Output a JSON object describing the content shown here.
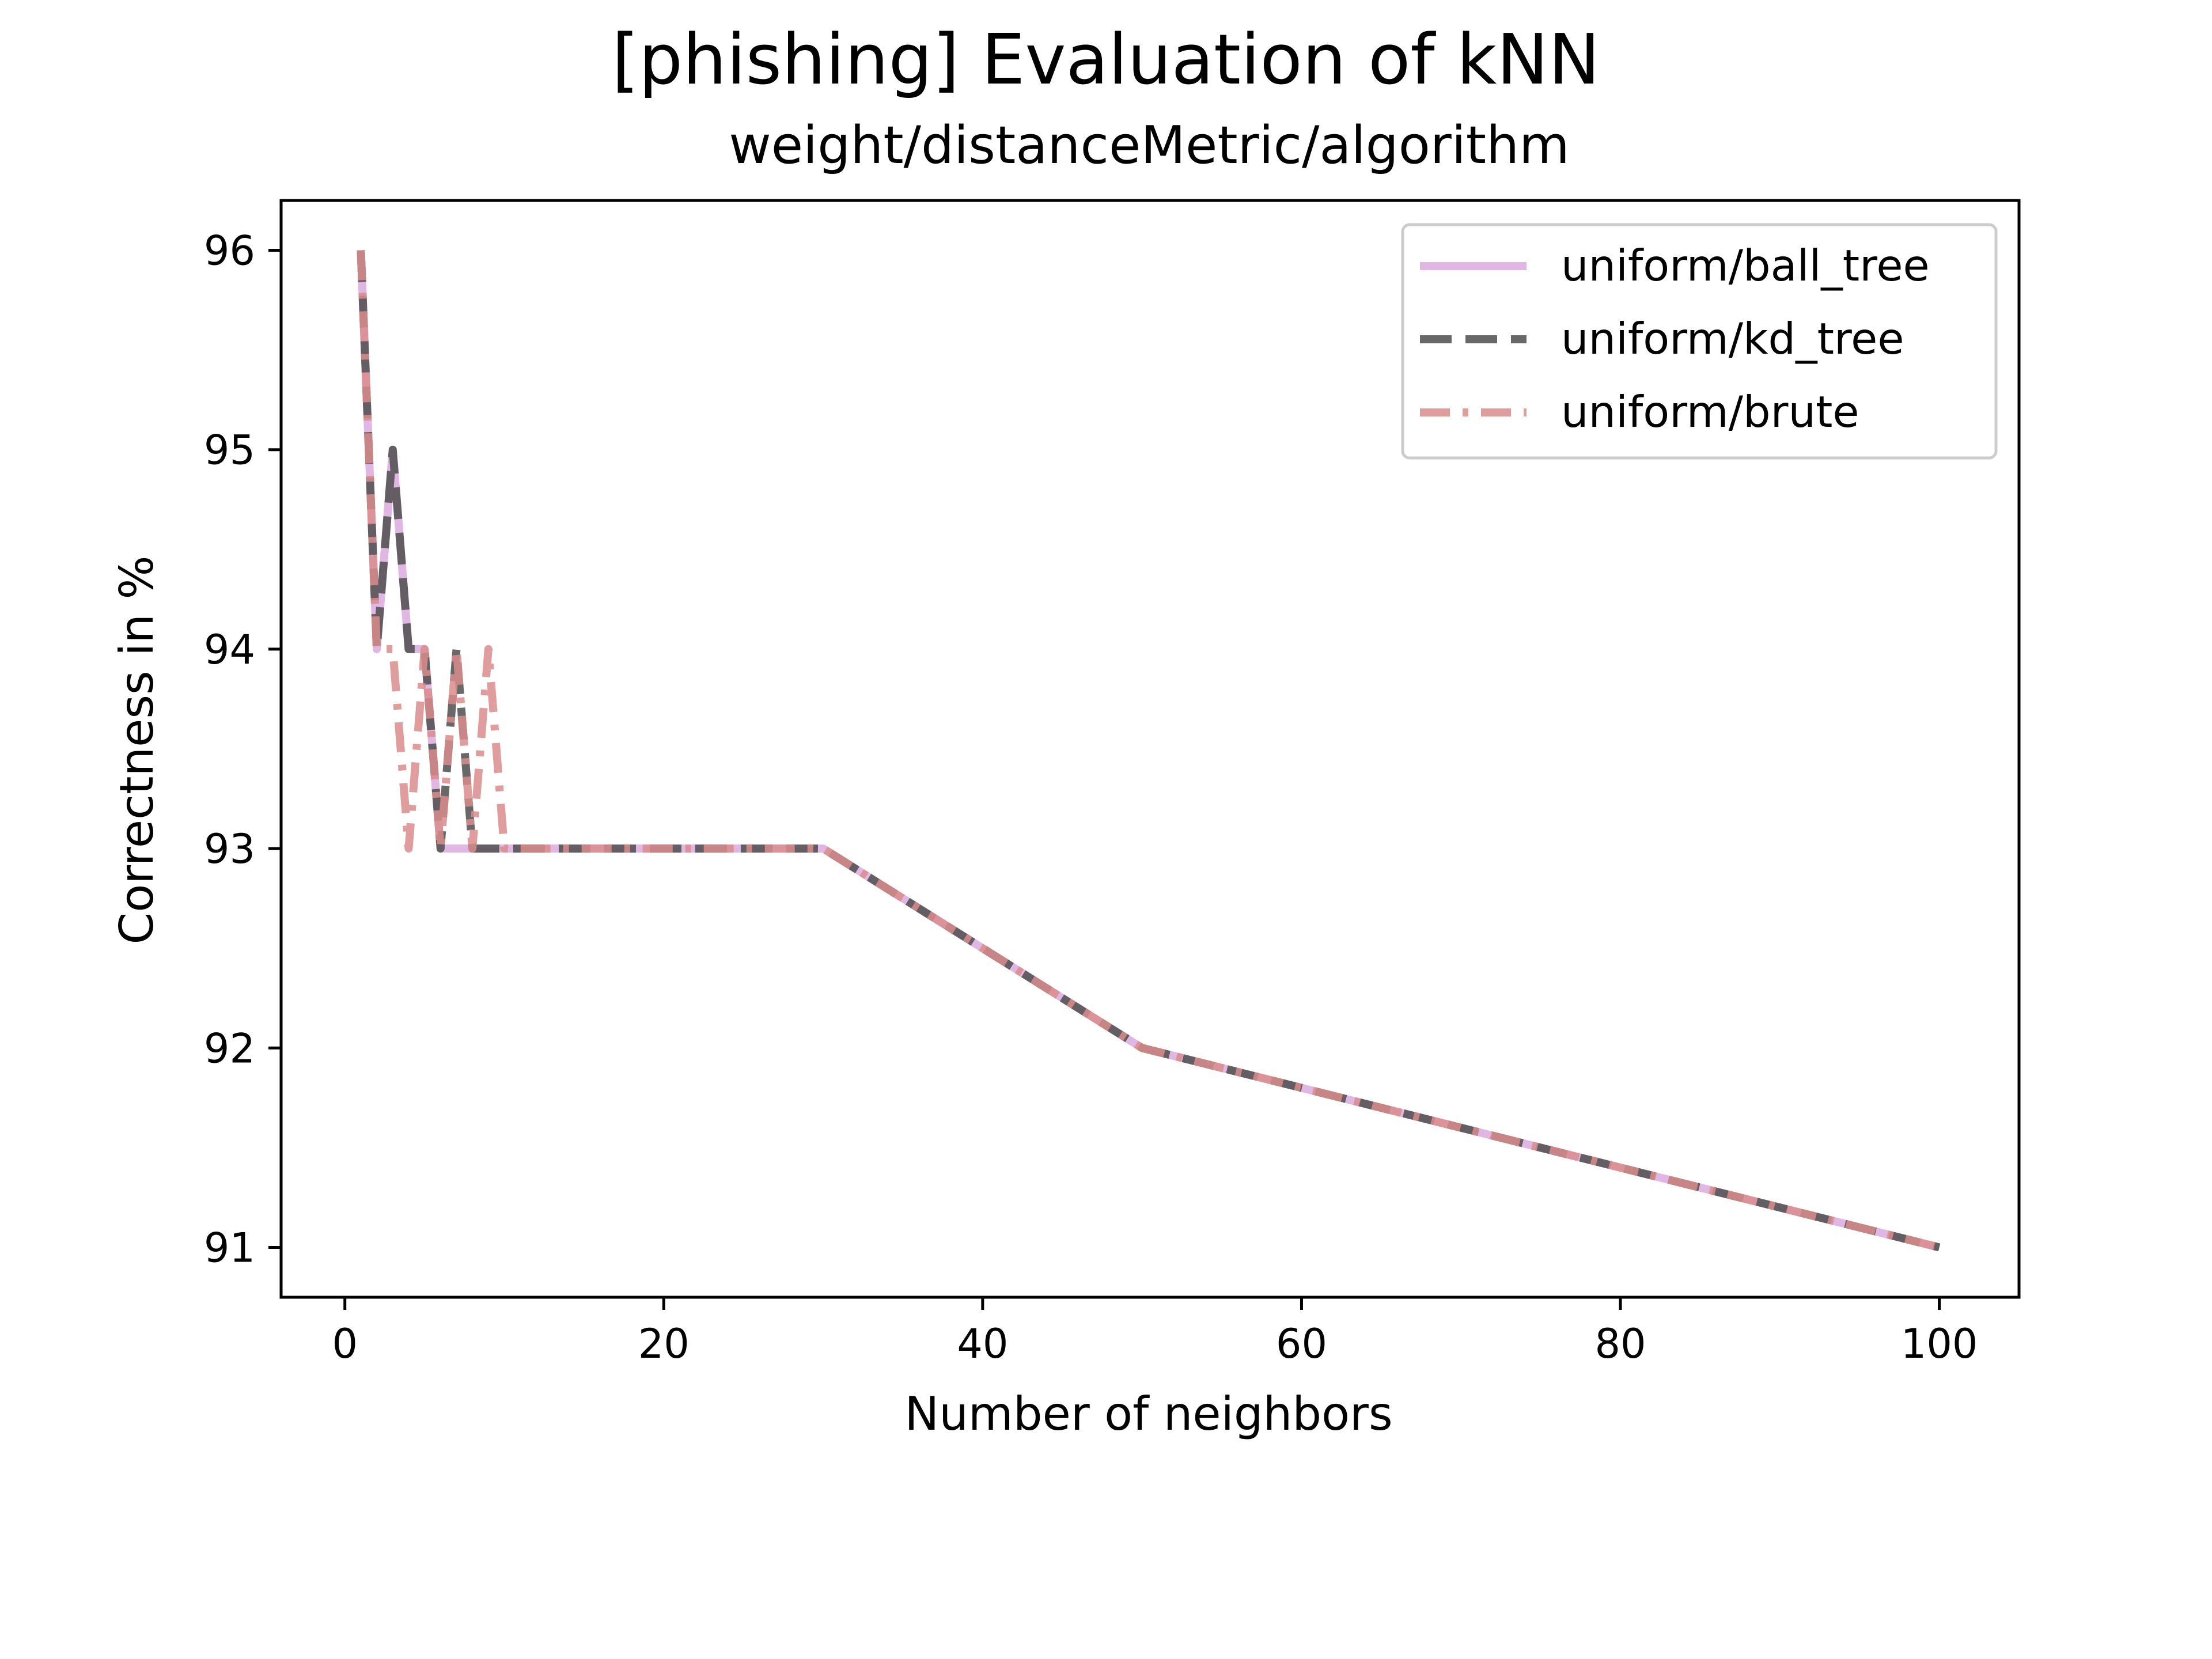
{
  "chart_data": {
    "type": "line",
    "title": "[phishing] Evaluation of kNN",
    "subtitle": "weight/distanceMetric/algorithm",
    "xlabel": "Number of neighbors",
    "ylabel": "Correctness in %",
    "xlim": [
      -4,
      105
    ],
    "ylim": [
      90.75,
      96.25
    ],
    "xticks": [
      0,
      20,
      40,
      60,
      80,
      100
    ],
    "yticks": [
      91,
      92,
      93,
      94,
      95,
      96
    ],
    "grid": false,
    "legend_position": "top-right",
    "series": [
      {
        "name": "uniform/ball_tree",
        "color": "#e0b7e3",
        "style": "solid",
        "x": [
          1,
          2,
          3,
          4,
          5,
          6,
          7,
          8,
          9,
          10,
          15,
          20,
          25,
          30,
          50,
          100
        ],
        "y": [
          96,
          94,
          95,
          94,
          94,
          93,
          93,
          93,
          93,
          93,
          93,
          93,
          93,
          93,
          92,
          91
        ]
      },
      {
        "name": "uniform/kd_tree",
        "color": "#4d4d4d",
        "style": "dashed",
        "x": [
          1,
          2,
          3,
          4,
          5,
          6,
          7,
          8,
          9,
          10,
          15,
          20,
          25,
          30,
          50,
          100
        ],
        "y": [
          96,
          94,
          95,
          94,
          94,
          93,
          94,
          93,
          93,
          93,
          93,
          93,
          93,
          93,
          92,
          91
        ]
      },
      {
        "name": "uniform/brute",
        "color": "#d98c8c",
        "style": "dashdot",
        "x": [
          1,
          2,
          3,
          4,
          5,
          6,
          7,
          8,
          9,
          10,
          15,
          20,
          25,
          30,
          50,
          100
        ],
        "y": [
          96,
          94,
          94,
          93,
          94,
          93,
          94,
          93,
          94,
          93,
          93,
          93,
          93,
          93,
          92,
          91
        ]
      }
    ]
  }
}
